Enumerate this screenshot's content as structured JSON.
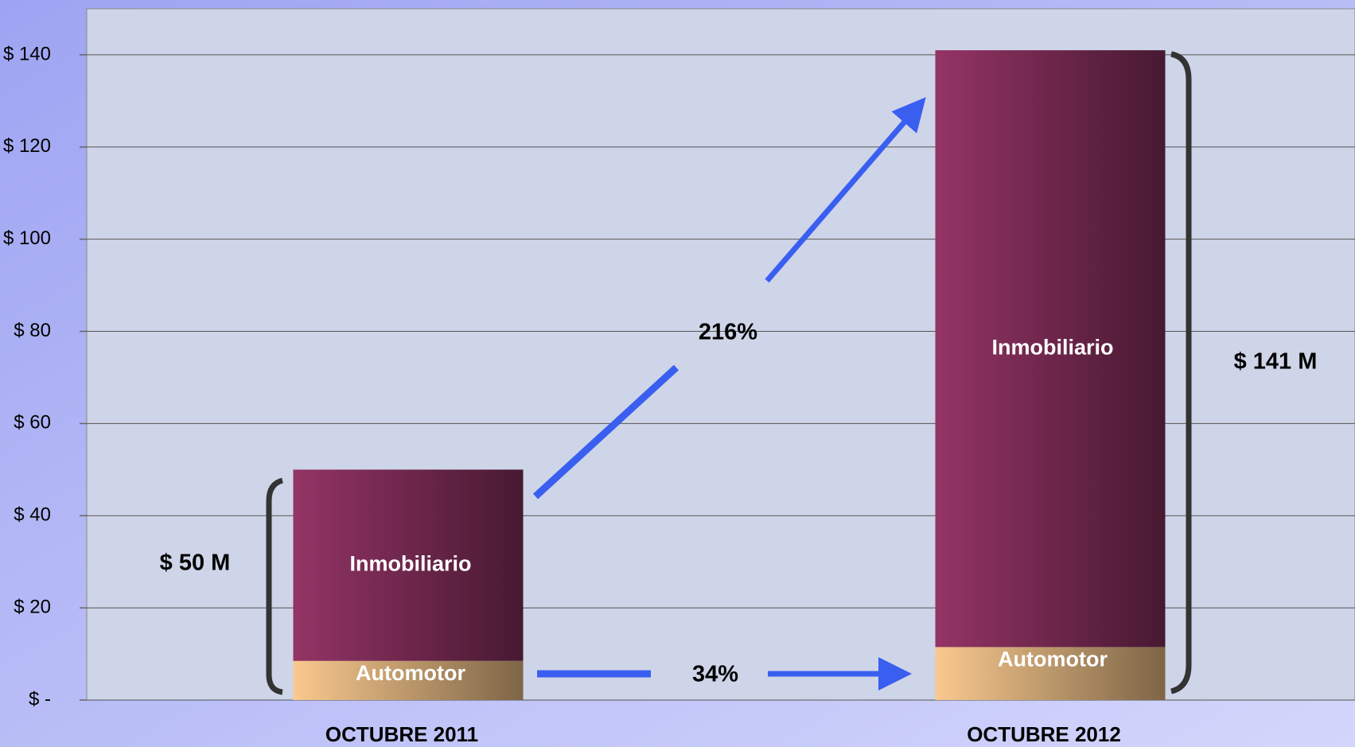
{
  "chart_data": {
    "type": "stacked_bar",
    "categories": [
      "OCTUBRE 2011",
      "OCTUBRE 2012"
    ],
    "series": [
      {
        "name": "Automotor",
        "color": "#f9c98e",
        "values": [
          8.5,
          11.5
        ]
      },
      {
        "name": "Inmobiliario",
        "color": "#943466",
        "values": [
          41.5,
          129.5
        ]
      }
    ],
    "ylim": [
      0,
      150
    ],
    "yticks": [
      {
        "value": 0,
        "label": "$ -"
      },
      {
        "value": 20,
        "label": "$ 20"
      },
      {
        "value": 40,
        "label": "$ 40"
      },
      {
        "value": 60,
        "label": "$ 60"
      },
      {
        "value": 80,
        "label": "$ 80"
      },
      {
        "value": 100,
        "label": "$ 100"
      },
      {
        "value": 120,
        "label": "$ 120"
      },
      {
        "value": 140,
        "label": "$ 140"
      }
    ],
    "grid": true,
    "annotations": [
      "$ 50 M",
      "216%",
      "$ 141 M",
      "34%"
    ]
  }
}
